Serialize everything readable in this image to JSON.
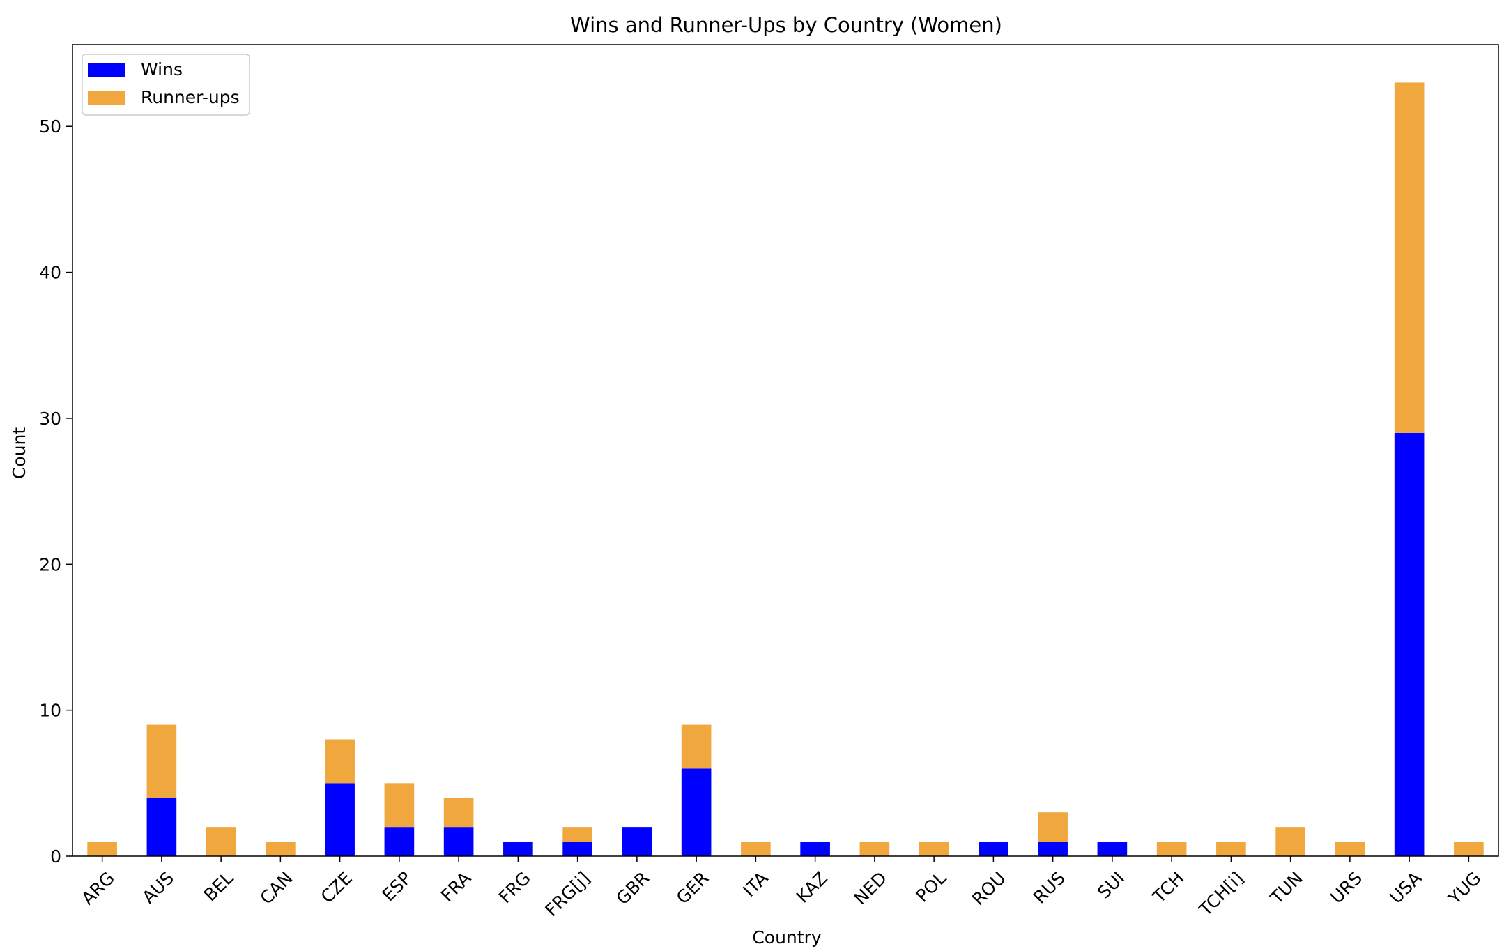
{
  "chart_data": {
    "type": "bar",
    "stacked": true,
    "title": "Wins and Runner-Ups by Country (Women)",
    "xlabel": "Country",
    "ylabel": "Count",
    "ylim": [
      0,
      55.6
    ],
    "yticks": [
      0,
      10,
      20,
      30,
      40,
      50
    ],
    "grid": false,
    "legend_position": "top-left",
    "categories": [
      "ARG",
      "AUS",
      "BEL",
      "CAN",
      "CZE",
      "ESP",
      "FRA",
      "FRG",
      "FRG[j]",
      "GBR",
      "GER",
      "ITA",
      "KAZ",
      "NED",
      "POL",
      "ROU",
      "RUS",
      "SUI",
      "TCH",
      "TCH[i]",
      "TUN",
      "URS",
      "USA",
      "YUG"
    ],
    "series": [
      {
        "name": "Wins",
        "color": "#0000ff",
        "values": [
          0,
          4,
          0,
          0,
          5,
          2,
          2,
          1,
          1,
          2,
          6,
          0,
          1,
          0,
          0,
          1,
          1,
          1,
          0,
          0,
          0,
          0,
          29,
          0
        ]
      },
      {
        "name": "Runner-ups",
        "color": "#f0a73e",
        "values": [
          1,
          5,
          2,
          1,
          3,
          3,
          2,
          0,
          1,
          0,
          3,
          1,
          0,
          1,
          1,
          0,
          2,
          0,
          1,
          1,
          2,
          1,
          24,
          1
        ]
      }
    ]
  }
}
